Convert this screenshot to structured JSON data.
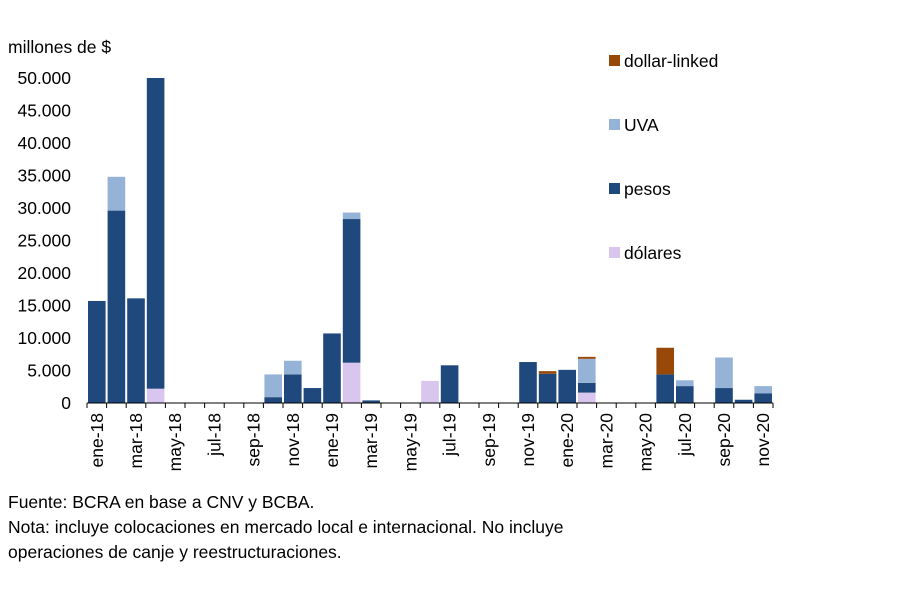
{
  "chart_data": {
    "type": "bar",
    "stacked": true,
    "ylabel": "millones de $",
    "ylim": [
      0,
      50000
    ],
    "yticks": [
      0,
      5000,
      10000,
      15000,
      20000,
      25000,
      30000,
      35000,
      40000,
      45000,
      50000
    ],
    "ytick_labels": [
      "0",
      "5.000",
      "10.000",
      "15.000",
      "20.000",
      "25.000",
      "30.000",
      "35.000",
      "40.000",
      "45.000",
      "50.000"
    ],
    "categories": [
      "ene-18",
      "feb-18",
      "mar-18",
      "abr-18",
      "may-18",
      "jun-18",
      "jul-18",
      "ago-18",
      "sep-18",
      "oct-18",
      "nov-18",
      "dic-18",
      "ene-19",
      "feb-19",
      "mar-19",
      "abr-19",
      "may-19",
      "jun-19",
      "jul-19",
      "ago-19",
      "sep-19",
      "oct-19",
      "nov-19",
      "dic-19",
      "ene-20",
      "feb-20",
      "mar-20",
      "abr-20",
      "may-20",
      "jun-20",
      "jul-20",
      "ago-20",
      "sep-20",
      "oct-20",
      "nov-20"
    ],
    "xtick_labels": [
      "ene-18",
      "",
      "mar-18",
      "",
      "may-18",
      "",
      "jul-18",
      "",
      "sep-18",
      "",
      "nov-18",
      "",
      "ene-19",
      "",
      "mar-19",
      "",
      "may-19",
      "",
      "jul-19",
      "",
      "sep-19",
      "",
      "nov-19",
      "",
      "ene-20",
      "",
      "mar-20",
      "",
      "may-20",
      "",
      "jul-20",
      "",
      "sep-20",
      "",
      "nov-20"
    ],
    "series": [
      {
        "name": "dólares",
        "color": "#d9c6ee",
        "values": [
          0,
          0,
          0,
          2200,
          0,
          0,
          0,
          0,
          0,
          0,
          0,
          0,
          0,
          6200,
          0,
          0,
          0,
          3400,
          0,
          0,
          0,
          0,
          0,
          0,
          0,
          1600,
          0,
          0,
          0,
          0,
          0,
          0,
          0,
          0,
          0
        ]
      },
      {
        "name": "pesos",
        "color": "#1f487c",
        "values": [
          15700,
          29600,
          16100,
          47800,
          0,
          0,
          0,
          0,
          0,
          900,
          4400,
          2300,
          10700,
          22100,
          400,
          0,
          0,
          0,
          5800,
          0,
          0,
          0,
          6300,
          4500,
          5100,
          1500,
          0,
          0,
          0,
          4400,
          2600,
          0,
          2300,
          500,
          1500
        ]
      },
      {
        "name": "UVA",
        "color": "#95b3d7",
        "values": [
          0,
          5200,
          0,
          0,
          0,
          0,
          0,
          0,
          0,
          3500,
          2100,
          0,
          0,
          1000,
          0,
          0,
          0,
          0,
          0,
          0,
          0,
          0,
          0,
          0,
          0,
          3700,
          0,
          0,
          0,
          0,
          900,
          0,
          4700,
          0,
          1100
        ]
      },
      {
        "name": "dollar-linked",
        "color": "#984807",
        "values": [
          0,
          0,
          0,
          0,
          0,
          0,
          0,
          0,
          0,
          0,
          0,
          0,
          0,
          0,
          0,
          0,
          0,
          0,
          0,
          0,
          0,
          0,
          0,
          400,
          0,
          300,
          0,
          0,
          0,
          4100,
          0,
          0,
          0,
          0,
          0
        ]
      }
    ],
    "legend_order": [
      "dollar-linked",
      "UVA",
      "pesos",
      "dólares"
    ],
    "legend": "top-right"
  },
  "notes": {
    "source": "Fuente: BCRA en base a CNV y BCBA.",
    "note_line1": "Nota: incluye colocaciones en mercado local e internacional. No incluye",
    "note_line2": "operaciones de canje y reestructuraciones."
  }
}
